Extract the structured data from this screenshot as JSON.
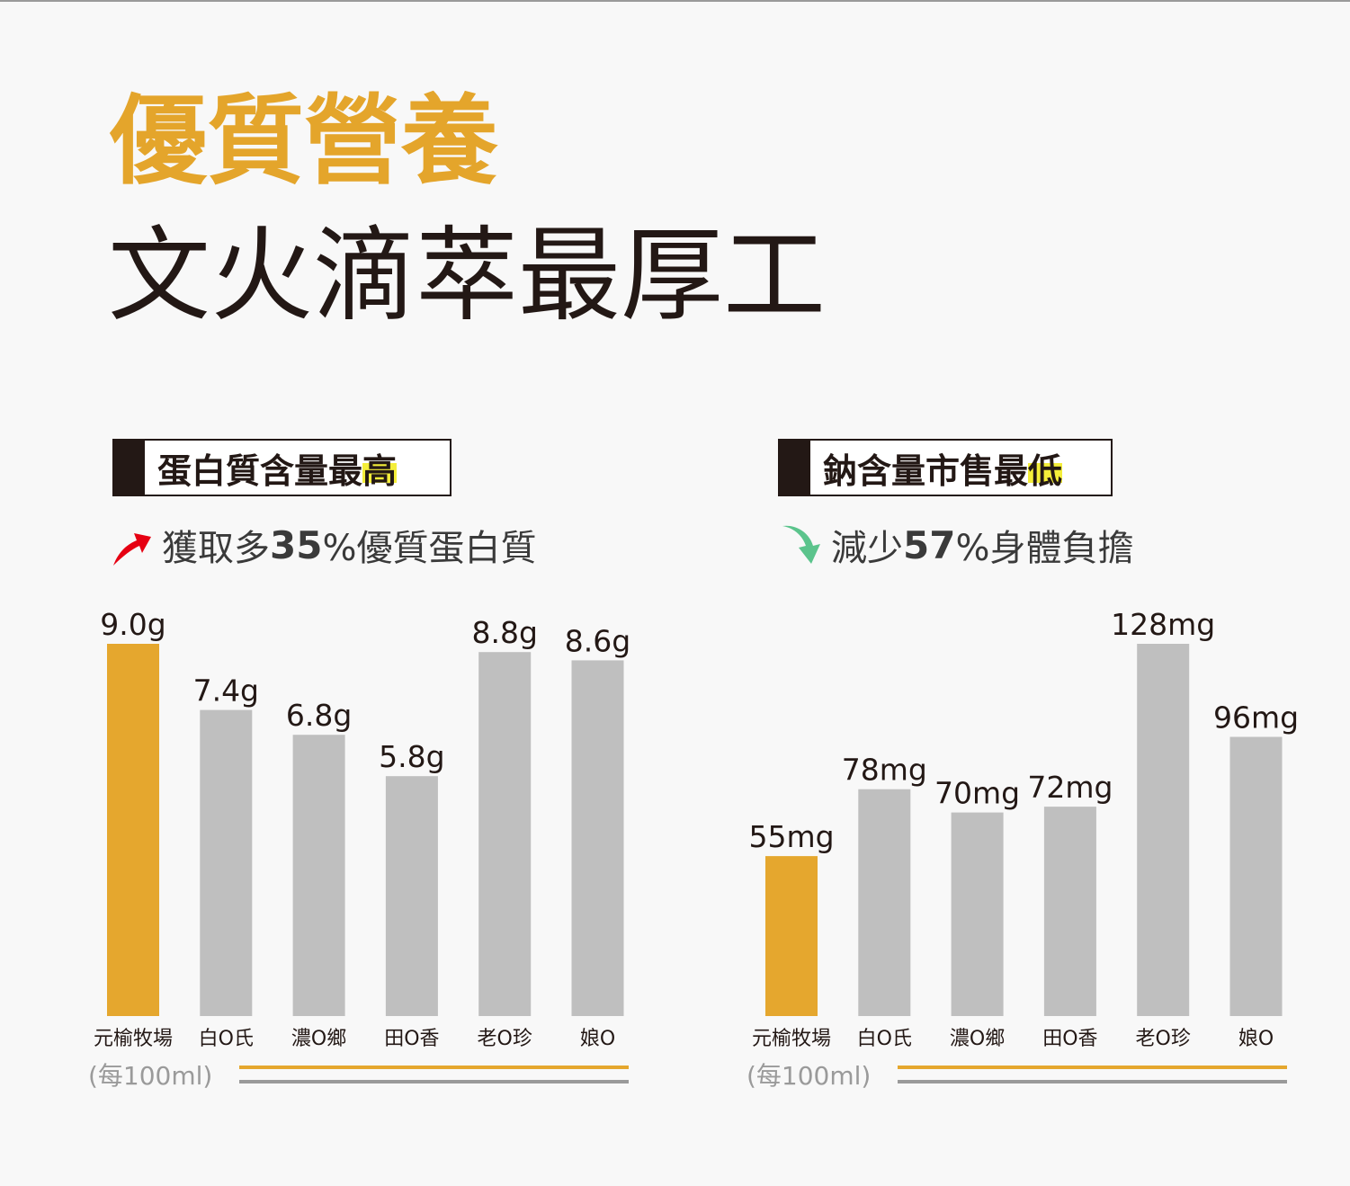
{
  "headline": {
    "line1": "優質營養",
    "line2": "文火滴萃最厚工"
  },
  "colors": {
    "accent": "#e5a72e",
    "bar_gray": "#bfbfbf",
    "highlight": "#f4ee3a",
    "arrow_up": "#e60012",
    "arrow_down": "#5bc48c",
    "text": "#231815"
  },
  "protein": {
    "tag_main": "蛋白質含量最",
    "tag_highlight": "高",
    "arrow_icon": "red-up-arrow-icon",
    "summary_prefix": "獲取多",
    "summary_number": "35",
    "summary_suffix": "%優質蛋白質"
  },
  "sodium": {
    "tag_main": "鈉含量市售最",
    "tag_highlight": "低",
    "arrow_icon": "green-down-arrow-icon",
    "summary_prefix": "減少",
    "summary_number": "57",
    "summary_suffix": "%身體負擔"
  },
  "chart_data": [
    {
      "type": "bar",
      "categories": [
        "元榆牧場",
        "白O氏",
        "濃O鄉",
        "田O香",
        "老O珍",
        "娘O"
      ],
      "values": [
        9.0,
        7.4,
        6.8,
        5.8,
        8.8,
        8.6
      ],
      "value_labels": [
        "9.0g",
        "7.4g",
        "6.8g",
        "5.8g",
        "8.8g",
        "8.6g"
      ],
      "highlight_index": 0,
      "unit_note": "(每100ml)",
      "scale_max": 9.0
    },
    {
      "type": "bar",
      "categories": [
        "元榆牧場",
        "白O氏",
        "濃O鄉",
        "田O香",
        "老O珍",
        "娘O"
      ],
      "values": [
        55,
        78,
        70,
        72,
        128,
        96
      ],
      "value_labels": [
        "55mg",
        "78mg",
        "70mg",
        "72mg",
        "128mg",
        "96mg"
      ],
      "highlight_index": 0,
      "unit_note": "(每100ml)",
      "scale_max": 128
    }
  ]
}
